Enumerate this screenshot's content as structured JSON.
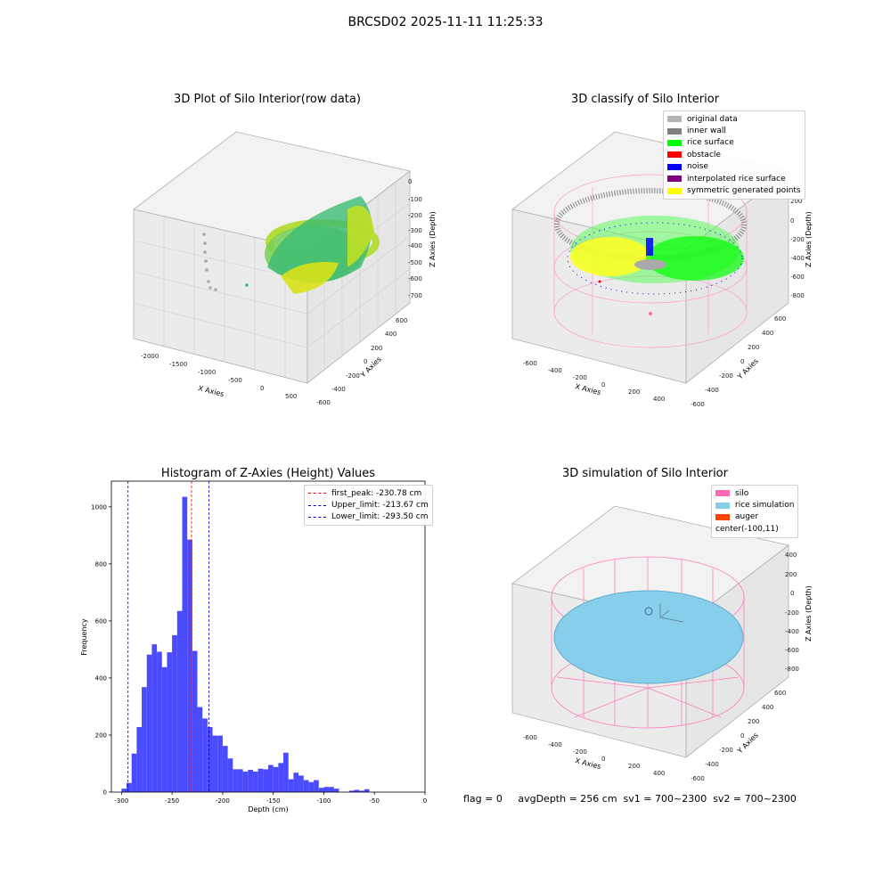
{
  "figure": {
    "title": "BRCSD02 2025-11-11 11:25:33"
  },
  "status_line": "flag = 0     avgDepth = 256 cm  sv1 = 700~2300  sv2 = 700~2300",
  "chart_data": [
    {
      "id": "raw",
      "type": "scatter",
      "title": "3D Plot of Silo Interior(row data)",
      "xlabel": "X Axies",
      "ylabel": "Y Axies",
      "zlabel": "Z Axies (Depth)",
      "x_ticks": [
        "-2000",
        "-1500",
        "-1000",
        "-500",
        "0",
        "500"
      ],
      "y_ticks": [
        "-600",
        "-400",
        "-200",
        "0",
        "200",
        "400",
        "600"
      ],
      "z_ticks": [
        "0",
        "-100",
        "-200",
        "-300",
        "-400",
        "-500",
        "-600",
        "-700"
      ],
      "xlim": [
        -2200,
        600
      ],
      "ylim": [
        -650,
        650
      ],
      "zlim": [
        -750,
        0
      ],
      "colormap": [
        "#440154",
        "#21918c",
        "#5ec962",
        "#fde725"
      ],
      "grid": true
    },
    {
      "id": "classify",
      "type": "scatter",
      "title": "3D classify of Silo Interior",
      "xlabel": "X Axies",
      "ylabel": "Y Axies",
      "zlabel": "Z Axies (Depth)",
      "x_ticks": [
        "-600",
        "-400",
        "-200",
        "0",
        "200",
        "400"
      ],
      "y_ticks": [
        "-600",
        "-400",
        "-200",
        "0",
        "200",
        "400",
        "600"
      ],
      "z_ticks": [
        "200",
        "0",
        "-200",
        "-400",
        "-600",
        "-800"
      ],
      "xlim": [
        -700,
        500
      ],
      "ylim": [
        -650,
        650
      ],
      "zlim": [
        -900,
        300
      ],
      "legend": [
        {
          "label": "original data",
          "color": "#b4b4b4"
        },
        {
          "label": "inner wall",
          "color": "#808080"
        },
        {
          "label": "rice surface",
          "color": "#00ff00"
        },
        {
          "label": "obstacle",
          "color": "#ff0000"
        },
        {
          "label": "noise",
          "color": "#0000ff"
        },
        {
          "label": "interpolated rice surface",
          "color": "#800080"
        },
        {
          "label": "symmetric generated points",
          "color": "#ffff00"
        }
      ],
      "legend_position": "top-right",
      "grid": true
    },
    {
      "id": "hist",
      "type": "bar",
      "title": "Histogram of Z-Axies (Height) Values",
      "xlabel": "Depth (cm)",
      "ylabel": "Frequency",
      "xlim": [
        -310,
        0
      ],
      "ylim": [
        0,
        1090
      ],
      "x_ticks": [
        -300,
        -250,
        -200,
        -150,
        -100,
        -50,
        0
      ],
      "y_ticks": [
        0,
        200,
        400,
        600,
        800,
        1000
      ],
      "bin_start": -300,
      "bin_width": 5,
      "bar_color": "#4a4aff",
      "values": [
        12,
        32,
        135,
        228,
        368,
        482,
        518,
        492,
        438,
        490,
        550,
        635,
        1035,
        885,
        495,
        298,
        258,
        228,
        198,
        198,
        162,
        118,
        80,
        80,
        72,
        78,
        72,
        82,
        80,
        95,
        88,
        102,
        138,
        45,
        68,
        58,
        42,
        35,
        42,
        15,
        18,
        18,
        12,
        0,
        0,
        5,
        8,
        5,
        10
      ],
      "vlines": [
        {
          "x": -230.78,
          "label": "first_peak: -230.78 cm",
          "color": "#ff0000"
        },
        {
          "x": -213.67,
          "label": "Upper_limit: -213.67 cm",
          "color": "#0000cc"
        },
        {
          "x": -293.5,
          "label": "Lower_limit: -293.50 cm",
          "color": "#0000cc"
        }
      ],
      "legend_position": "top-right",
      "grid": false
    },
    {
      "id": "sim",
      "type": "scatter",
      "title": "3D simulation of Silo Interior",
      "xlabel": "X Axies",
      "ylabel": "Y Axies",
      "zlabel": "Z Axies (Depth)",
      "x_ticks": [
        "-600",
        "-400",
        "-200",
        "0",
        "200",
        "400"
      ],
      "y_ticks": [
        "-600",
        "-400",
        "-200",
        "0",
        "200",
        "400",
        "600"
      ],
      "z_ticks": [
        "400",
        "200",
        "0",
        "-200",
        "-400",
        "-600",
        "-800"
      ],
      "xlim": [
        -700,
        500
      ],
      "ylim": [
        -650,
        650
      ],
      "zlim": [
        -900,
        450
      ],
      "legend": [
        {
          "label": "silo",
          "color": "#ff69b4"
        },
        {
          "label": "rice simulation",
          "color": "#87ceeb"
        },
        {
          "label": "auger",
          "color": "#ff4500"
        },
        {
          "label": "center(-100,11)",
          "color": ""
        }
      ],
      "legend_position": "top-right",
      "grid": true
    }
  ]
}
